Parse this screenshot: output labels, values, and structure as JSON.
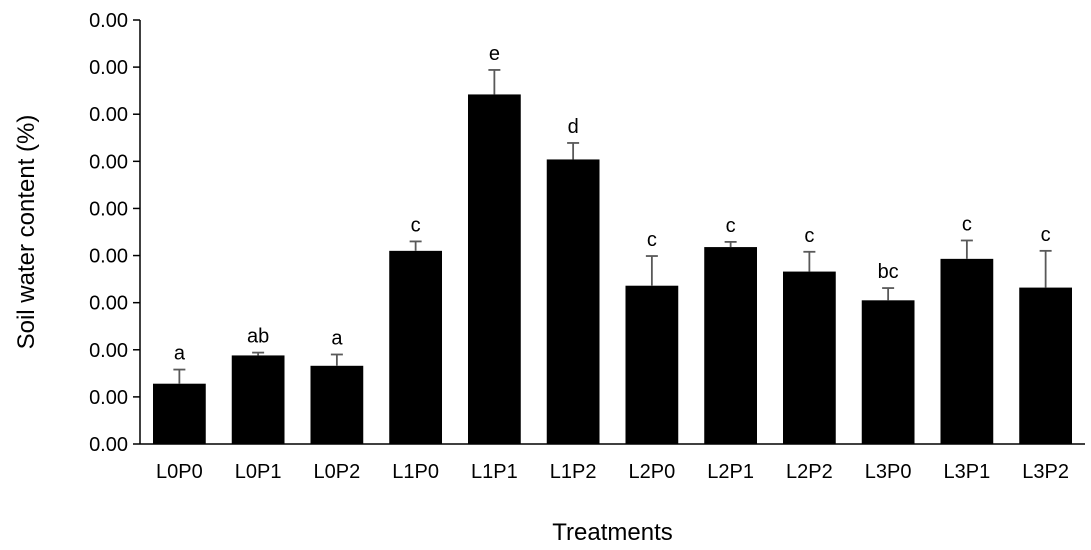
{
  "chart_data": {
    "type": "bar",
    "title": "",
    "xlabel": "Treatments",
    "ylabel": "Soil water content (%)",
    "y_tick_labels": [
      "0.00",
      "0.00",
      "0.00",
      "0.00",
      "0.00",
      "0.00",
      "0.00",
      "0.00",
      "0.00",
      "0.00"
    ],
    "ylim": [
      0,
      9
    ],
    "grid": false,
    "legend": "none",
    "bar_color": "#000000",
    "error_color": "#595959",
    "categories": [
      "L0P0",
      "L0P1",
      "L0P2",
      "L1P0",
      "L1P1",
      "L1P2",
      "L2P0",
      "L2P1",
      "L2P2",
      "L3P0",
      "L3P1",
      "L3P2"
    ],
    "values": [
      1.28,
      1.88,
      1.66,
      4.1,
      7.42,
      6.04,
      3.36,
      4.18,
      3.66,
      3.05,
      3.93,
      3.32
    ],
    "errors": [
      0.3,
      0.06,
      0.24,
      0.2,
      0.52,
      0.35,
      0.63,
      0.11,
      0.42,
      0.26,
      0.39,
      0.78
    ],
    "significance": [
      "a",
      "ab",
      "a",
      "c",
      "e",
      "d",
      "c",
      "c",
      "c",
      "bc",
      "c",
      "c"
    ]
  }
}
